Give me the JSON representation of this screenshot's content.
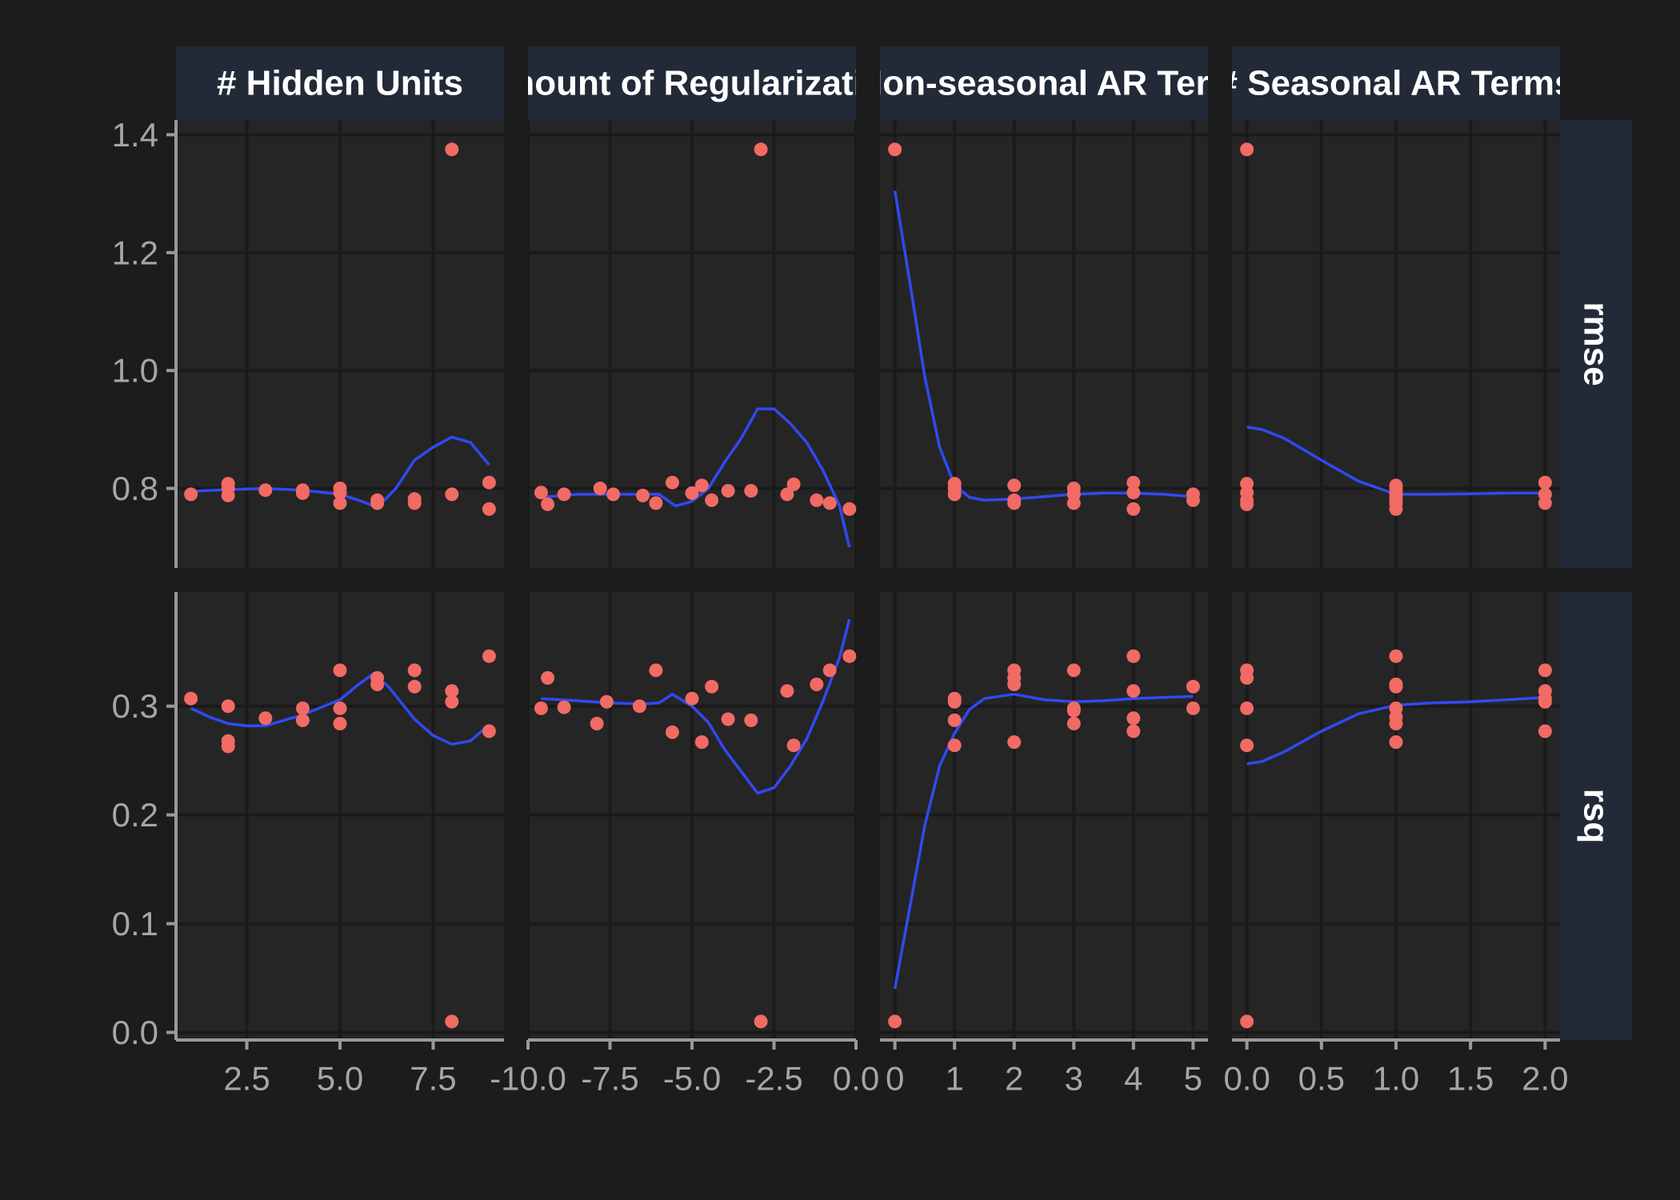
{
  "colors": {
    "background": "#1c1c1c",
    "panel": "#252525",
    "grid": "#1a1a1a",
    "strip": "#222a38",
    "strip_text": "#ffffff",
    "axis": "#9a9a9a",
    "tick_label": "#a6a6a6",
    "point": "#f26a64",
    "smooth": "#2f4af0"
  },
  "chart_data": {
    "type": "scatter",
    "facet_columns": [
      {
        "key": "hidden_units",
        "label": "# Hidden Units",
        "xlim": [
          0.6,
          9.4
        ],
        "xticks": [
          2.5,
          5.0,
          7.5
        ],
        "xtick_labels": [
          "2.5",
          "5.0",
          "7.5"
        ]
      },
      {
        "key": "regularization",
        "label": "Amount of Regularization",
        "xlim": [
          -10.0,
          0.0
        ],
        "xticks": [
          -10.0,
          -7.5,
          -5.0,
          -2.5,
          0.0
        ],
        "xtick_labels": [
          "-10.0",
          "-7.5",
          "-5.0",
          "-2.5",
          "0.0"
        ]
      },
      {
        "key": "non_seasonal_ar",
        "label": "# Non-seasonal AR Terms",
        "xlim": [
          -0.25,
          5.25
        ],
        "xticks": [
          0,
          1,
          2,
          3,
          4,
          5
        ],
        "xtick_labels": [
          "0",
          "1",
          "2",
          "3",
          "4",
          "5"
        ]
      },
      {
        "key": "seasonal_ar",
        "label": "# Seasonal AR Terms",
        "xlim": [
          -0.1,
          2.1
        ],
        "xticks": [
          0.0,
          0.5,
          1.0,
          1.5,
          2.0
        ],
        "xtick_labels": [
          "0.0",
          "0.5",
          "1.0",
          "1.5",
          "2.0"
        ]
      }
    ],
    "facet_rows": [
      {
        "key": "rmse",
        "label": "rmse",
        "ylim": [
          0.665,
          1.425
        ],
        "yticks": [
          0.8,
          1.0,
          1.2,
          1.4
        ],
        "ytick_labels": [
          "0.8",
          "1.0",
          "1.2",
          "1.4"
        ]
      },
      {
        "key": "rsq",
        "label": "rsq",
        "ylim": [
          -0.007,
          0.405
        ],
        "yticks": [
          0.0,
          0.1,
          0.2,
          0.3
        ],
        "ytick_labels": [
          "0.0",
          "0.1",
          "0.2",
          "0.3"
        ]
      }
    ],
    "points": {
      "hidden_units": {
        "rmse": [
          [
            1,
            0.79
          ],
          [
            2,
            0.808
          ],
          [
            2,
            0.8
          ],
          [
            2,
            0.788
          ],
          [
            3,
            0.797
          ],
          [
            4,
            0.797
          ],
          [
            4,
            0.792
          ],
          [
            5,
            0.8
          ],
          [
            5,
            0.793
          ],
          [
            5,
            0.775
          ],
          [
            6,
            0.78
          ],
          [
            6,
            0.775
          ],
          [
            7,
            0.782
          ],
          [
            7,
            0.775
          ],
          [
            8,
            1.375
          ],
          [
            8,
            0.79
          ],
          [
            9,
            0.81
          ],
          [
            9,
            0.765
          ]
        ],
        "rsq": [
          [
            1,
            0.307
          ],
          [
            2,
            0.3
          ],
          [
            2,
            0.268
          ],
          [
            2,
            0.263
          ],
          [
            3,
            0.289
          ],
          [
            4,
            0.298
          ],
          [
            4,
            0.287
          ],
          [
            5,
            0.333
          ],
          [
            5,
            0.298
          ],
          [
            5,
            0.284
          ],
          [
            6,
            0.326
          ],
          [
            6,
            0.32
          ],
          [
            7,
            0.333
          ],
          [
            7,
            0.318
          ],
          [
            8,
            0.314
          ],
          [
            8,
            0.304
          ],
          [
            8,
            0.01
          ],
          [
            9,
            0.346
          ],
          [
            9,
            0.277
          ]
        ]
      },
      "regularization": {
        "rmse": [
          [
            -9.6,
            0.793
          ],
          [
            -9.4,
            0.773
          ],
          [
            -8.9,
            0.79
          ],
          [
            -7.8,
            0.8
          ],
          [
            -7.4,
            0.79
          ],
          [
            -6.5,
            0.788
          ],
          [
            -6.1,
            0.775
          ],
          [
            -5.6,
            0.81
          ],
          [
            -5.0,
            0.792
          ],
          [
            -4.7,
            0.805
          ],
          [
            -4.4,
            0.78
          ],
          [
            -3.9,
            0.796
          ],
          [
            -3.2,
            0.796
          ],
          [
            -2.9,
            1.375
          ],
          [
            -2.1,
            0.79
          ],
          [
            -1.9,
            0.807
          ],
          [
            -1.2,
            0.78
          ],
          [
            -0.8,
            0.775
          ],
          [
            -0.2,
            0.765
          ]
        ],
        "rsq": [
          [
            -9.6,
            0.298
          ],
          [
            -9.4,
            0.326
          ],
          [
            -8.9,
            0.299
          ],
          [
            -7.9,
            0.284
          ],
          [
            -7.6,
            0.304
          ],
          [
            -6.6,
            0.3
          ],
          [
            -6.1,
            0.333
          ],
          [
            -5.6,
            0.276
          ],
          [
            -5.0,
            0.307
          ],
          [
            -4.7,
            0.267
          ],
          [
            -4.4,
            0.318
          ],
          [
            -3.9,
            0.288
          ],
          [
            -3.2,
            0.287
          ],
          [
            -2.9,
            0.01
          ],
          [
            -2.1,
            0.314
          ],
          [
            -1.9,
            0.264
          ],
          [
            -1.2,
            0.32
          ],
          [
            -0.8,
            0.333
          ],
          [
            -0.2,
            0.346
          ]
        ]
      },
      "non_seasonal_ar": {
        "rmse": [
          [
            0,
            1.375
          ],
          [
            1,
            0.808
          ],
          [
            1,
            0.8
          ],
          [
            1,
            0.79
          ],
          [
            2,
            0.805
          ],
          [
            2,
            0.78
          ],
          [
            2,
            0.775
          ],
          [
            3,
            0.8
          ],
          [
            3,
            0.79
          ],
          [
            3,
            0.775
          ],
          [
            4,
            0.81
          ],
          [
            4,
            0.793
          ],
          [
            4,
            0.765
          ],
          [
            5,
            0.79
          ],
          [
            5,
            0.78
          ]
        ],
        "rsq": [
          [
            0,
            0.01
          ],
          [
            1,
            0.307
          ],
          [
            1,
            0.304
          ],
          [
            1,
            0.287
          ],
          [
            1,
            0.264
          ],
          [
            2,
            0.333
          ],
          [
            2,
            0.326
          ],
          [
            2,
            0.32
          ],
          [
            2,
            0.267
          ],
          [
            3,
            0.333
          ],
          [
            3,
            0.298
          ],
          [
            3,
            0.296
          ],
          [
            3,
            0.284
          ],
          [
            4,
            0.346
          ],
          [
            4,
            0.314
          ],
          [
            4,
            0.289
          ],
          [
            4,
            0.277
          ],
          [
            5,
            0.318
          ],
          [
            5,
            0.298
          ]
        ]
      },
      "seasonal_ar": {
        "rmse": [
          [
            0,
            1.375
          ],
          [
            0,
            0.808
          ],
          [
            0,
            0.793
          ],
          [
            0,
            0.78
          ],
          [
            0,
            0.773
          ],
          [
            1,
            0.805
          ],
          [
            1,
            0.8
          ],
          [
            1,
            0.793
          ],
          [
            1,
            0.788
          ],
          [
            1,
            0.782
          ],
          [
            1,
            0.775
          ],
          [
            1,
            0.765
          ],
          [
            2,
            0.81
          ],
          [
            2,
            0.79
          ],
          [
            2,
            0.775
          ]
        ],
        "rsq": [
          [
            0,
            0.333
          ],
          [
            0,
            0.326
          ],
          [
            0,
            0.298
          ],
          [
            0,
            0.264
          ],
          [
            0,
            0.01
          ],
          [
            1,
            0.346
          ],
          [
            1,
            0.32
          ],
          [
            1,
            0.318
          ],
          [
            1,
            0.298
          ],
          [
            1,
            0.29
          ],
          [
            1,
            0.284
          ],
          [
            1,
            0.267
          ],
          [
            2,
            0.333
          ],
          [
            2,
            0.314
          ],
          [
            2,
            0.307
          ],
          [
            2,
            0.304
          ],
          [
            2,
            0.277
          ]
        ]
      }
    },
    "smooth_lines": {
      "hidden_units": {
        "rmse": [
          [
            1,
            0.795
          ],
          [
            2,
            0.798
          ],
          [
            3,
            0.8
          ],
          [
            4,
            0.797
          ],
          [
            5,
            0.79
          ],
          [
            5.5,
            0.78
          ],
          [
            6,
            0.768
          ],
          [
            6.5,
            0.8
          ],
          [
            7,
            0.848
          ],
          [
            7.5,
            0.87
          ],
          [
            8,
            0.887
          ],
          [
            8.5,
            0.878
          ],
          [
            9,
            0.84
          ]
        ],
        "rsq": [
          [
            1,
            0.298
          ],
          [
            1.5,
            0.29
          ],
          [
            2,
            0.284
          ],
          [
            2.5,
            0.282
          ],
          [
            3,
            0.282
          ],
          [
            4,
            0.292
          ],
          [
            5,
            0.306
          ],
          [
            5.5,
            0.32
          ],
          [
            5.9,
            0.33
          ],
          [
            6.3,
            0.318
          ],
          [
            7,
            0.288
          ],
          [
            7.5,
            0.273
          ],
          [
            8,
            0.265
          ],
          [
            8.5,
            0.268
          ],
          [
            9,
            0.283
          ]
        ]
      },
      "regularization": {
        "rmse": [
          [
            -9.6,
            0.785
          ],
          [
            -8.5,
            0.79
          ],
          [
            -7.5,
            0.79
          ],
          [
            -6.5,
            0.79
          ],
          [
            -6,
            0.79
          ],
          [
            -5.5,
            0.77
          ],
          [
            -5,
            0.778
          ],
          [
            -4.5,
            0.8
          ],
          [
            -4,
            0.845
          ],
          [
            -3.5,
            0.885
          ],
          [
            -3,
            0.935
          ],
          [
            -2.5,
            0.935
          ],
          [
            -2,
            0.91
          ],
          [
            -1.5,
            0.878
          ],
          [
            -1,
            0.83
          ],
          [
            -0.5,
            0.77
          ],
          [
            -0.2,
            0.7
          ]
        ],
        "rsq": [
          [
            -9.6,
            0.307
          ],
          [
            -8.5,
            0.305
          ],
          [
            -7.5,
            0.303
          ],
          [
            -6.5,
            0.302
          ],
          [
            -6,
            0.303
          ],
          [
            -5.6,
            0.311
          ],
          [
            -5,
            0.3
          ],
          [
            -4.5,
            0.285
          ],
          [
            -4,
            0.26
          ],
          [
            -3.5,
            0.24
          ],
          [
            -3,
            0.22
          ],
          [
            -2.5,
            0.225
          ],
          [
            -2,
            0.245
          ],
          [
            -1.5,
            0.27
          ],
          [
            -1,
            0.305
          ],
          [
            -0.5,
            0.345
          ],
          [
            -0.2,
            0.38
          ]
        ]
      },
      "non_seasonal_ar": {
        "rmse": [
          [
            0,
            1.305
          ],
          [
            0.25,
            1.15
          ],
          [
            0.5,
            0.99
          ],
          [
            0.75,
            0.87
          ],
          [
            1,
            0.805
          ],
          [
            1.25,
            0.785
          ],
          [
            1.5,
            0.78
          ],
          [
            2,
            0.782
          ],
          [
            2.5,
            0.786
          ],
          [
            3,
            0.79
          ],
          [
            3.5,
            0.792
          ],
          [
            4,
            0.792
          ],
          [
            4.5,
            0.79
          ],
          [
            5,
            0.786
          ]
        ],
        "rsq": [
          [
            0,
            0.04
          ],
          [
            0.25,
            0.115
          ],
          [
            0.5,
            0.19
          ],
          [
            0.75,
            0.245
          ],
          [
            1,
            0.275
          ],
          [
            1.25,
            0.297
          ],
          [
            1.5,
            0.307
          ],
          [
            2,
            0.311
          ],
          [
            2.5,
            0.306
          ],
          [
            3,
            0.304
          ],
          [
            3.5,
            0.305
          ],
          [
            4,
            0.307
          ],
          [
            4.5,
            0.308
          ],
          [
            5,
            0.309
          ]
        ]
      },
      "seasonal_ar": {
        "rmse": [
          [
            0,
            0.904
          ],
          [
            0.1,
            0.9
          ],
          [
            0.25,
            0.885
          ],
          [
            0.5,
            0.848
          ],
          [
            0.75,
            0.812
          ],
          [
            1,
            0.79
          ],
          [
            1.25,
            0.79
          ],
          [
            1.5,
            0.791
          ],
          [
            1.75,
            0.792
          ],
          [
            2,
            0.792
          ]
        ],
        "rsq": [
          [
            0,
            0.247
          ],
          [
            0.1,
            0.249
          ],
          [
            0.25,
            0.258
          ],
          [
            0.5,
            0.277
          ],
          [
            0.75,
            0.293
          ],
          [
            1,
            0.301
          ],
          [
            1.25,
            0.303
          ],
          [
            1.5,
            0.304
          ],
          [
            1.75,
            0.306
          ],
          [
            2,
            0.308
          ]
        ]
      }
    },
    "grid": true
  }
}
